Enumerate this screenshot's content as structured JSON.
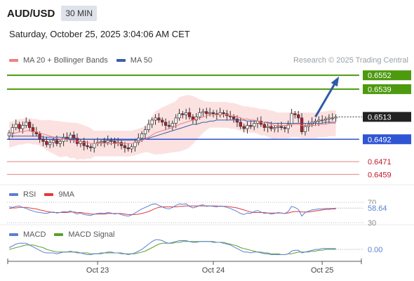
{
  "header": {
    "symbol": "AUD/USD",
    "interval": "30 MIN",
    "datetime": "Saturday, October 25, 2025 3:04:06 AM CET",
    "copyright": "Research © 2025 Trading Central"
  },
  "colors": {
    "up_candle": "#ffffff",
    "down_candle": "#c0172a",
    "candle_wick": "#333333",
    "bollinger_fill": "#fbdcdc",
    "ma20": "#f08080",
    "ma50": "#3a5fa8",
    "green_level": "#4d9a0f",
    "blue_level": "#2f55d4",
    "red_level": "#e89a9a",
    "arrow": "#2f5aa8",
    "last_price_bg": "#222222",
    "rsi": "#5b7fd6",
    "rsi_ma": "#e23a3a",
    "macd": "#5b7fd6",
    "macd_signal": "#5aa02c"
  },
  "chart_data": [
    {
      "type": "candlestick",
      "legend": [
        {
          "name": "MA 20 + Bollinger Bands",
          "color": "#f08080"
        },
        {
          "name": "MA 50",
          "color": "#3a5fa8"
        }
      ],
      "ylim": [
        0.645,
        0.6562
      ],
      "x_ticks": [
        {
          "index": 26,
          "label": "Oct 23"
        },
        {
          "index": 60,
          "label": "Oct 24"
        },
        {
          "index": 92,
          "label": "Oct 25"
        }
      ],
      "levels": [
        {
          "value": 0.6552,
          "label": "0.6552",
          "style": "resistance"
        },
        {
          "value": 0.6539,
          "label": "0.6539",
          "style": "resistance"
        },
        {
          "value": 0.6492,
          "label": "0.6492",
          "style": "pivot"
        },
        {
          "value": 0.6471,
          "label": "0.6471",
          "style": "support"
        },
        {
          "value": 0.6459,
          "label": "0.6459",
          "style": "support"
        }
      ],
      "last_price": {
        "value": 0.6513,
        "label": "0.6513"
      },
      "arrow": {
        "from_index": 90,
        "from_value": 0.6513,
        "to_index": 99,
        "to_value": 0.6552
      },
      "closes": [
        0.6498,
        0.6503,
        0.6506,
        0.6502,
        0.6505,
        0.6508,
        0.6503,
        0.6499,
        0.6497,
        0.6492,
        0.649,
        0.6487,
        0.6489,
        0.6491,
        0.6488,
        0.649,
        0.6494,
        0.6492,
        0.6496,
        0.6493,
        0.6488,
        0.649,
        0.6486,
        0.6485,
        0.6484,
        0.6488,
        0.6489,
        0.649,
        0.6489,
        0.6491,
        0.649,
        0.6488,
        0.6489,
        0.6486,
        0.6484,
        0.6483,
        0.6485,
        0.6489,
        0.6493,
        0.6497,
        0.6501,
        0.6506,
        0.651,
        0.6512,
        0.651,
        0.6508,
        0.6505,
        0.6504,
        0.6507,
        0.6512,
        0.6516,
        0.6515,
        0.6517,
        0.6513,
        0.651,
        0.6513,
        0.6517,
        0.6518,
        0.6516,
        0.6517,
        0.6516,
        0.6515,
        0.6517,
        0.6516,
        0.6514,
        0.6513,
        0.6511,
        0.6508,
        0.6504,
        0.6502,
        0.6505,
        0.6504,
        0.6507,
        0.6509,
        0.6506,
        0.6503,
        0.6504,
        0.6502,
        0.6503,
        0.6504,
        0.6503,
        0.6502,
        0.6506,
        0.6516,
        0.6515,
        0.6512,
        0.6499,
        0.6504,
        0.6506,
        0.6508,
        0.6509,
        0.651,
        0.651,
        0.6511,
        0.6512,
        0.6512,
        0.6513
      ],
      "ma20": [
        0.6496,
        0.6497,
        0.6498,
        0.6499,
        0.6499,
        0.65,
        0.65,
        0.6499,
        0.6499,
        0.6498,
        0.6497,
        0.6496,
        0.6495,
        0.6494,
        0.6493,
        0.6492,
        0.6492,
        0.6492,
        0.6491,
        0.6491,
        0.649,
        0.649,
        0.6489,
        0.6489,
        0.6488,
        0.6488,
        0.6488,
        0.6488,
        0.6488,
        0.6488,
        0.6488,
        0.6488,
        0.6488,
        0.6488,
        0.6488,
        0.6488,
        0.6488,
        0.6489,
        0.649,
        0.6491,
        0.6492,
        0.6494,
        0.6496,
        0.6498,
        0.6499,
        0.65,
        0.6501,
        0.6502,
        0.6503,
        0.6504,
        0.6506,
        0.6507,
        0.6508,
        0.6509,
        0.651,
        0.6511,
        0.6512,
        0.6513,
        0.6514,
        0.6515,
        0.6515,
        0.6515,
        0.6515,
        0.6515,
        0.6515,
        0.6514,
        0.6514,
        0.6513,
        0.6512,
        0.6511,
        0.6511,
        0.651,
        0.651,
        0.6509,
        0.6508,
        0.6508,
        0.6507,
        0.6506,
        0.6505,
        0.6505,
        0.6505,
        0.6505,
        0.6505,
        0.6506,
        0.6506,
        0.6506,
        0.6505,
        0.6505,
        0.6505,
        0.6505,
        0.6505,
        0.6506,
        0.6506,
        0.6506,
        0.6507,
        0.6507,
        0.6507
      ],
      "ma50": [
        0.6495,
        0.6495,
        0.6495,
        0.6495,
        0.6495,
        0.6495,
        0.6495,
        0.6495,
        0.6495,
        0.6495,
        0.6494,
        0.6494,
        0.6494,
        0.6494,
        0.6494,
        0.6494,
        0.6493,
        0.6493,
        0.6493,
        0.6493,
        0.6493,
        0.6492,
        0.6492,
        0.6492,
        0.6492,
        0.6492,
        0.6492,
        0.6492,
        0.6491,
        0.6491,
        0.6491,
        0.6491,
        0.6491,
        0.6491,
        0.6491,
        0.6491,
        0.6491,
        0.6491,
        0.6491,
        0.6492,
        0.6493,
        0.6493,
        0.6494,
        0.6495,
        0.6496,
        0.6497,
        0.6498,
        0.6499,
        0.65,
        0.6501,
        0.6502,
        0.6503,
        0.6504,
        0.6505,
        0.6506,
        0.6506,
        0.6507,
        0.6508,
        0.6508,
        0.6509,
        0.6509,
        0.651,
        0.651,
        0.651,
        0.651,
        0.651,
        0.651,
        0.651,
        0.651,
        0.651,
        0.6509,
        0.6509,
        0.6509,
        0.6509,
        0.6508,
        0.6508,
        0.6508,
        0.6507,
        0.6507,
        0.6507,
        0.6507,
        0.6507,
        0.6507,
        0.6507,
        0.6507,
        0.6507,
        0.6507,
        0.6507,
        0.6507,
        0.6507,
        0.6507,
        0.6507,
        0.6507,
        0.6508,
        0.6508,
        0.6508,
        0.6508
      ]
    },
    {
      "type": "line",
      "legend": [
        {
          "name": "RSI",
          "color": "#5b7fd6"
        },
        {
          "name": "9MA",
          "color": "#e23a3a"
        }
      ],
      "ylim": [
        30,
        70
      ],
      "ref_levels": [
        70,
        30
      ],
      "ref_labels": [
        "70",
        "30"
      ],
      "current": {
        "value": 58.64,
        "label": "58.64"
      },
      "rsi": [
        61,
        60,
        62,
        63,
        60,
        58,
        55,
        53,
        51,
        50,
        49,
        48,
        50,
        51,
        49,
        50,
        52,
        51,
        53,
        50,
        47,
        49,
        46,
        45,
        44,
        47,
        48,
        49,
        48,
        50,
        49,
        47,
        48,
        46,
        44,
        43,
        45,
        49,
        53,
        57,
        60,
        63,
        66,
        67,
        64,
        61,
        58,
        57,
        60,
        64,
        67,
        66,
        67,
        62,
        59,
        61,
        64,
        65,
        62,
        63,
        62,
        61,
        63,
        62,
        60,
        58,
        55,
        52,
        48,
        46,
        49,
        48,
        52,
        54,
        51,
        48,
        49,
        47,
        48,
        50,
        49,
        48,
        52,
        62,
        60,
        56,
        43,
        50,
        53,
        55,
        56,
        57,
        57,
        58,
        58,
        58,
        58.64
      ],
      "rsi_ma": [
        58,
        59,
        59,
        60,
        60,
        60,
        59,
        58,
        57,
        55,
        54,
        52,
        51,
        50,
        50,
        50,
        50,
        50,
        51,
        51,
        50,
        50,
        49,
        48,
        47,
        47,
        47,
        47,
        47,
        48,
        48,
        48,
        48,
        48,
        47,
        46,
        46,
        46,
        47,
        48,
        50,
        52,
        55,
        58,
        60,
        61,
        61,
        61,
        61,
        61,
        62,
        62,
        63,
        63,
        63,
        63,
        63,
        63,
        63,
        63,
        63,
        63,
        62,
        62,
        62,
        61,
        60,
        59,
        57,
        55,
        53,
        51,
        50,
        50,
        50,
        50,
        49,
        49,
        49,
        49,
        49,
        48,
        49,
        51,
        52,
        52,
        51,
        51,
        51,
        52,
        53,
        54,
        55,
        56,
        56,
        57,
        57
      ]
    },
    {
      "type": "line",
      "legend": [
        {
          "name": "MACD",
          "color": "#5b7fd6"
        },
        {
          "name": "MACD Signal",
          "color": "#5aa02c"
        }
      ],
      "ylim": [
        -0.0012,
        0.0012
      ],
      "current": {
        "value": 0.0,
        "label": "0.00"
      },
      "macd": [
        0.0002,
        0.0004,
        0.0006,
        0.0007,
        0.0007,
        0.0007,
        0.0005,
        0.0003,
        0.0001,
        -0.0001,
        -0.0003,
        -0.0004,
        -0.0004,
        -0.0004,
        -0.0005,
        -0.0004,
        -0.0003,
        -0.0003,
        -0.0002,
        -0.0003,
        -0.0004,
        -0.0004,
        -0.0005,
        -0.0006,
        -0.0006,
        -0.0005,
        -0.0005,
        -0.0004,
        -0.0004,
        -0.0003,
        -0.0003,
        -0.0004,
        -0.0004,
        -0.0005,
        -0.0005,
        -0.0006,
        -0.0005,
        -0.0004,
        -0.0002,
        0.0,
        0.0003,
        0.0006,
        0.0009,
        0.0011,
        0.0011,
        0.001,
        0.0008,
        0.0007,
        0.0008,
        0.0009,
        0.001,
        0.001,
        0.001,
        0.0009,
        0.0008,
        0.0008,
        0.0009,
        0.0009,
        0.0009,
        0.0009,
        0.0008,
        0.0008,
        0.0008,
        0.0007,
        0.0006,
        0.0005,
        0.0003,
        0.0001,
        -0.0001,
        -0.0003,
        -0.0003,
        -0.0004,
        -0.0003,
        -0.0003,
        -0.0004,
        -0.0005,
        -0.0005,
        -0.0006,
        -0.0006,
        -0.0006,
        -0.0006,
        -0.0006,
        -0.0005,
        -0.0002,
        -0.0001,
        -0.0001,
        -0.0004,
        -0.0003,
        -0.0002,
        -0.0001,
        0.0,
        0.0,
        0.0001,
        0.0001,
        0.0001,
        0.0001,
        0.0001
      ],
      "signal": [
        0.0,
        0.0001,
        0.0002,
        0.0003,
        0.0004,
        0.0005,
        0.0005,
        0.0005,
        0.0004,
        0.0003,
        0.0002,
        0.0,
        -0.0001,
        -0.0002,
        -0.0003,
        -0.0003,
        -0.0003,
        -0.0003,
        -0.0003,
        -0.0003,
        -0.0003,
        -0.0004,
        -0.0004,
        -0.0004,
        -0.0005,
        -0.0005,
        -0.0005,
        -0.0005,
        -0.0004,
        -0.0004,
        -0.0004,
        -0.0004,
        -0.0004,
        -0.0004,
        -0.0005,
        -0.0005,
        -0.0005,
        -0.0005,
        -0.0004,
        -0.0003,
        -0.0002,
        0.0,
        0.0002,
        0.0004,
        0.0006,
        0.0007,
        0.0007,
        0.0007,
        0.0007,
        0.0008,
        0.0008,
        0.0009,
        0.0009,
        0.0009,
        0.0009,
        0.0009,
        0.0009,
        0.0009,
        0.0009,
        0.0009,
        0.0009,
        0.0008,
        0.0008,
        0.0008,
        0.0007,
        0.0006,
        0.0005,
        0.0004,
        0.0002,
        0.0001,
        0.0,
        -0.0001,
        -0.0002,
        -0.0003,
        -0.0003,
        -0.0004,
        -0.0004,
        -0.0005,
        -0.0005,
        -0.0005,
        -0.0006,
        -0.0006,
        -0.0005,
        -0.0005,
        -0.0004,
        -0.0003,
        -0.0003,
        -0.0003,
        -0.0003,
        -0.0002,
        -0.0002,
        -0.0001,
        -0.0001,
        0.0,
        0.0,
        0.0,
        0.0
      ]
    }
  ]
}
